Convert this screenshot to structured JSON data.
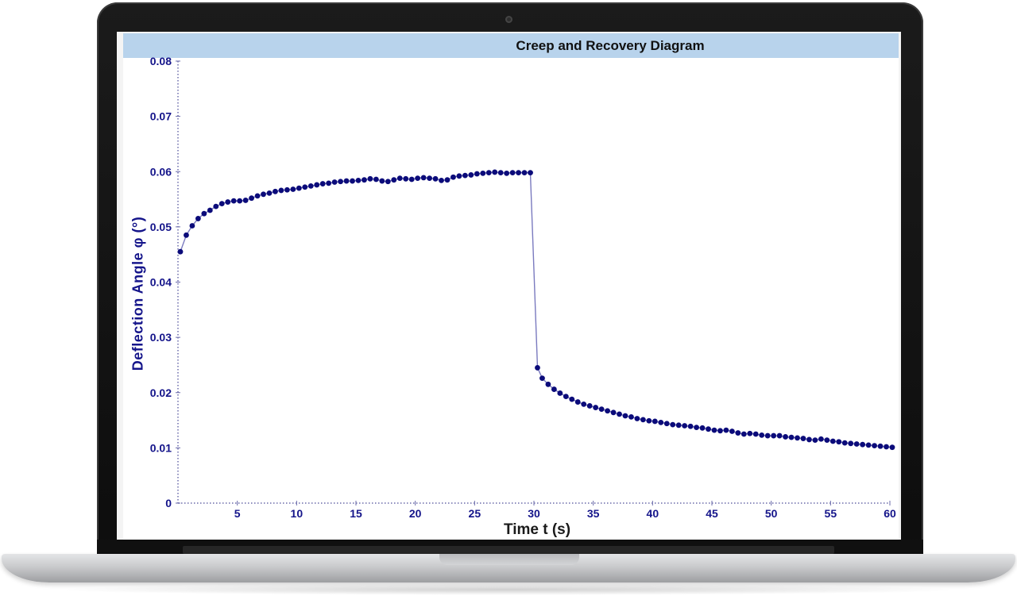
{
  "chart_data": {
    "type": "scatter",
    "title": "Creep and Recovery Diagram",
    "xlabel": "Time t (s)",
    "ylabel": "Deflection Angle φ (°)",
    "xlim": [
      0,
      60
    ],
    "ylim": [
      0,
      0.08
    ],
    "x_ticks": [
      5,
      10,
      15,
      20,
      25,
      30,
      35,
      40,
      45,
      50,
      55,
      60
    ],
    "y_ticks": [
      "0",
      "0.01",
      "0.02",
      "0.03",
      "0.04",
      "0.05",
      "0.06",
      "0.07",
      "0.08"
    ],
    "grid": false,
    "connected": true,
    "marker_color": "#0b0b7a",
    "line_color": "#7a7abf",
    "axis_label_color": "#14148a",
    "series": [
      {
        "x": [
          0.2,
          0.7,
          1.2,
          1.7,
          2.2,
          2.7,
          3.2,
          3.7,
          4.2,
          4.7,
          5.2,
          5.7,
          6.2,
          6.7,
          7.2,
          7.7,
          8.2,
          8.7,
          9.2,
          9.7,
          10.2,
          10.7,
          11.2,
          11.7,
          12.2,
          12.7,
          13.2,
          13.7,
          14.2,
          14.7,
          15.2,
          15.7,
          16.2,
          16.7,
          17.2,
          17.7,
          18.2,
          18.7,
          19.2,
          19.7,
          20.2,
          20.7,
          21.2,
          21.7,
          22.2,
          22.7,
          23.2,
          23.7,
          24.2,
          24.7,
          25.2,
          25.7,
          26.2,
          26.7,
          27.2,
          27.7,
          28.2,
          28.7,
          29.2,
          29.7,
          30.3,
          30.7,
          31.2,
          31.7,
          32.2,
          32.7,
          33.2,
          33.7,
          34.2,
          34.7,
          35.2,
          35.7,
          36.2,
          36.7,
          37.2,
          37.7,
          38.2,
          38.7,
          39.2,
          39.7,
          40.2,
          40.7,
          41.2,
          41.7,
          42.2,
          42.7,
          43.2,
          43.7,
          44.2,
          44.7,
          45.2,
          45.7,
          46.2,
          46.7,
          47.2,
          47.7,
          48.2,
          48.7,
          49.2,
          49.7,
          50.2,
          50.7,
          51.2,
          51.7,
          52.2,
          52.7,
          53.2,
          53.7,
          54.2,
          54.7,
          55.2,
          55.7,
          56.2,
          56.7,
          57.2,
          57.7,
          58.2,
          58.7,
          59.2,
          59.7,
          60.2
        ],
        "y": [
          0.0455,
          0.0485,
          0.0502,
          0.0515,
          0.0524,
          0.053,
          0.0537,
          0.0542,
          0.0545,
          0.0547,
          0.0547,
          0.0548,
          0.0552,
          0.0556,
          0.0559,
          0.0561,
          0.0564,
          0.0566,
          0.0567,
          0.0568,
          0.057,
          0.0572,
          0.0574,
          0.0576,
          0.0578,
          0.0579,
          0.0581,
          0.0582,
          0.0583,
          0.0583,
          0.0584,
          0.0585,
          0.0587,
          0.0586,
          0.0583,
          0.0582,
          0.0585,
          0.0588,
          0.0587,
          0.0586,
          0.0588,
          0.0589,
          0.0588,
          0.0587,
          0.0584,
          0.0585,
          0.059,
          0.0592,
          0.0593,
          0.0594,
          0.0596,
          0.0597,
          0.0598,
          0.0599,
          0.0598,
          0.0597,
          0.0598,
          0.0598,
          0.0598,
          0.0598,
          0.0245,
          0.0226,
          0.0215,
          0.0206,
          0.0199,
          0.0193,
          0.0188,
          0.0183,
          0.0179,
          0.0176,
          0.0173,
          0.017,
          0.0167,
          0.0164,
          0.0161,
          0.0158,
          0.0156,
          0.0153,
          0.0151,
          0.0149,
          0.0148,
          0.0146,
          0.0144,
          0.0142,
          0.0141,
          0.014,
          0.0139,
          0.0137,
          0.0136,
          0.0134,
          0.0132,
          0.0131,
          0.0132,
          0.013,
          0.0127,
          0.0125,
          0.0126,
          0.0125,
          0.0123,
          0.0122,
          0.0122,
          0.0122,
          0.012,
          0.0119,
          0.0118,
          0.0117,
          0.0115,
          0.0114,
          0.0116,
          0.0114,
          0.0112,
          0.0111,
          0.0109,
          0.0108,
          0.0107,
          0.0106,
          0.0105,
          0.0104,
          0.0103,
          0.0102,
          0.0101
        ]
      }
    ]
  }
}
